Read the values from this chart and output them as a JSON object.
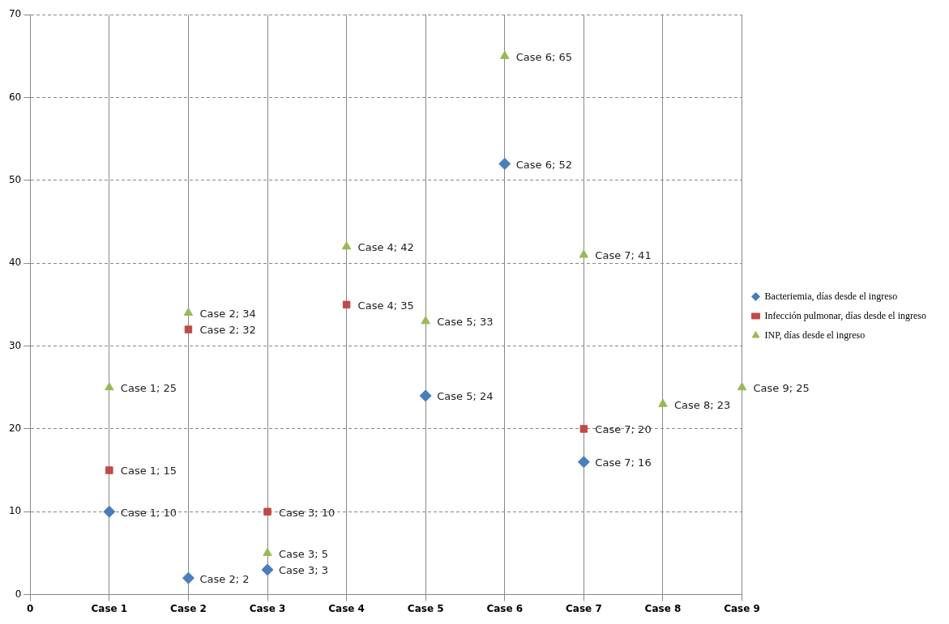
{
  "chart_data": {
    "type": "scatter",
    "categories": [
      "0",
      "Case 1",
      "Case 2",
      "Case 3",
      "Case 4",
      "Case 5",
      "Case 6",
      "Case 7",
      "Case 8",
      "Case 9"
    ],
    "ylim": [
      0,
      70
    ],
    "yticks": [
      0,
      10,
      20,
      30,
      40,
      50,
      60,
      70
    ],
    "grid": true,
    "legend": "right",
    "series": [
      {
        "name": "Bacteriemia, días desde el ingreso",
        "color": "#4a7ebb",
        "marker": "diamond",
        "values": [
          null,
          10,
          2,
          3,
          null,
          24,
          52,
          16,
          null,
          null
        ],
        "value_labels": [
          null,
          "Case 1; 10",
          "Case 2; 2",
          "Case 3; 3",
          null,
          "Case 5; 24",
          "Case 6; 52",
          "Case 7; 16",
          null,
          null
        ]
      },
      {
        "name": "Infección pulmonar, días desde el ingreso",
        "color": "#be4b48",
        "marker": "square",
        "values": [
          null,
          15,
          32,
          10,
          35,
          null,
          null,
          20,
          null,
          null
        ],
        "value_labels": [
          null,
          "Case 1; 15",
          "Case 2; 32",
          "Case 3; 10",
          "Case 4; 35",
          null,
          null,
          "Case 7; 20",
          null,
          null
        ]
      },
      {
        "name": "INP, días desde el ingreso",
        "color": "#98b954",
        "marker": "triangle",
        "values": [
          null,
          25,
          34,
          5,
          42,
          33,
          65,
          41,
          23,
          25
        ],
        "value_labels": [
          null,
          "Case 1; 25",
          "Case 2; 34",
          "Case 3; 5",
          "Case 4; 42",
          "Case 5; 33",
          "Case 6; 65",
          "Case 7; 41",
          "Case 8; 23",
          "Case 9; 25"
        ]
      }
    ]
  }
}
